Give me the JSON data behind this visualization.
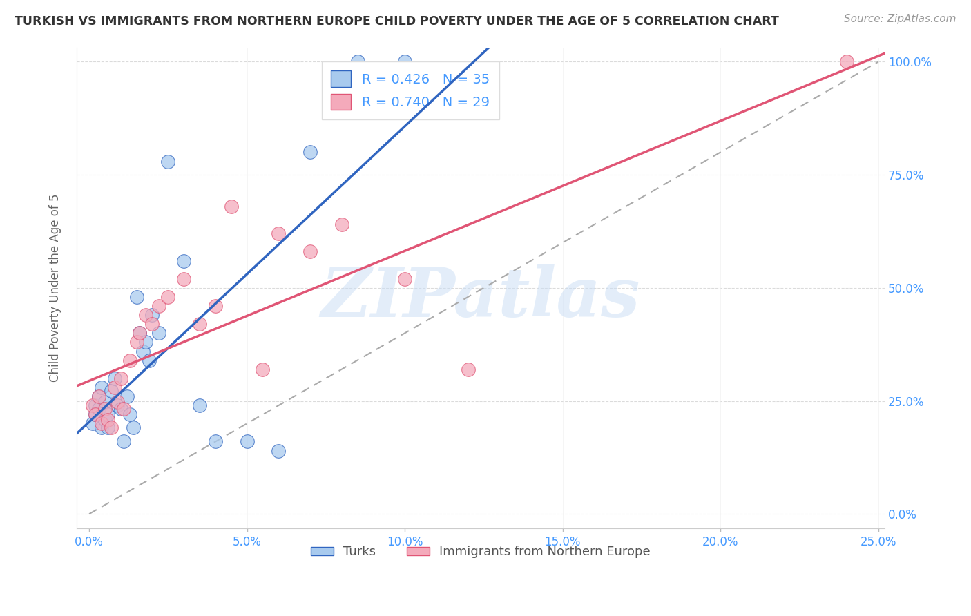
{
  "title": "TURKISH VS IMMIGRANTS FROM NORTHERN EUROPE CHILD POVERTY UNDER THE AGE OF 5 CORRELATION CHART",
  "source": "Source: ZipAtlas.com",
  "ylabel": "Child Poverty Under the Age of 5",
  "legend_label1": "Turks",
  "legend_label2": "Immigrants from Northern Europe",
  "r1": 0.426,
  "n1": 35,
  "r2": 0.74,
  "n2": 29,
  "color1": "#A8CAEE",
  "color2": "#F4AABB",
  "line_color1": "#3065C0",
  "line_color2": "#E05575",
  "axis_label_color": "#4499ff",
  "title_color": "#333333",
  "source_color": "#999999",
  "grid_color": "#cccccc",
  "background_color": "#ffffff",
  "watermark": "ZIPatlas",
  "xlim": [
    0.0,
    0.25
  ],
  "ylim": [
    0.0,
    0.25
  ],
  "xtick_vals": [
    0.0,
    0.05,
    0.1,
    0.15,
    0.2,
    0.25
  ],
  "ytick_vals": [
    0.0,
    0.0625,
    0.125,
    0.1875,
    0.25
  ],
  "xticklabels": [
    "0.0%",
    "5.0%",
    "10.0%",
    "15.0%",
    "20.0%",
    "25.0%"
  ],
  "yticklabels": [
    "0.0%",
    "25.0%",
    "50.0%",
    "75.0%",
    "100.0%"
  ],
  "turks_x": [
    0.001,
    0.002,
    0.002,
    0.003,
    0.003,
    0.004,
    0.004,
    0.005,
    0.005,
    0.006,
    0.006,
    0.007,
    0.008,
    0.009,
    0.01,
    0.011,
    0.012,
    0.013,
    0.014,
    0.015,
    0.016,
    0.017,
    0.018,
    0.019,
    0.02,
    0.022,
    0.025,
    0.03,
    0.035,
    0.04,
    0.05,
    0.06,
    0.07,
    0.085,
    0.1
  ],
  "turks_y": [
    0.05,
    0.06,
    0.055,
    0.065,
    0.058,
    0.07,
    0.048,
    0.052,
    0.062,
    0.048,
    0.055,
    0.068,
    0.075,
    0.06,
    0.058,
    0.04,
    0.065,
    0.055,
    0.048,
    0.12,
    0.1,
    0.09,
    0.095,
    0.085,
    0.11,
    0.1,
    0.195,
    0.14,
    0.06,
    0.04,
    0.04,
    0.035,
    0.2,
    0.25,
    0.25
  ],
  "northern_x": [
    0.001,
    0.002,
    0.003,
    0.004,
    0.005,
    0.006,
    0.007,
    0.008,
    0.009,
    0.01,
    0.011,
    0.013,
    0.015,
    0.016,
    0.018,
    0.02,
    0.022,
    0.025,
    0.03,
    0.035,
    0.04,
    0.045,
    0.055,
    0.06,
    0.07,
    0.08,
    0.1,
    0.12,
    0.24
  ],
  "northern_y": [
    0.06,
    0.055,
    0.065,
    0.05,
    0.058,
    0.052,
    0.048,
    0.07,
    0.062,
    0.075,
    0.058,
    0.085,
    0.095,
    0.1,
    0.11,
    0.105,
    0.115,
    0.12,
    0.13,
    0.105,
    0.115,
    0.17,
    0.08,
    0.155,
    0.145,
    0.16,
    0.13,
    0.08,
    0.25
  ]
}
